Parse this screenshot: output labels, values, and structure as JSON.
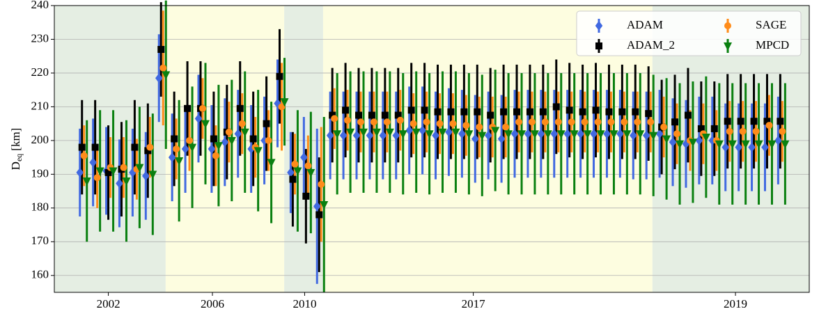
{
  "chart_data": {
    "type": "errorbar",
    "ylabel": "D",
    "ylabel_sub": "eq",
    "ylabel_unit": "[km]",
    "x": [
      0,
      1,
      2,
      3,
      4,
      5,
      6,
      7,
      8,
      9,
      10,
      11,
      12,
      13,
      14,
      15,
      16,
      17,
      18,
      19,
      20,
      21,
      22,
      23,
      24,
      25,
      26,
      27,
      28,
      29,
      30,
      31,
      32,
      33,
      34,
      35,
      36,
      37,
      38,
      39,
      40,
      41,
      42,
      43,
      44,
      45,
      46,
      47,
      48,
      49,
      50,
      51,
      52,
      53
    ],
    "xlim": [
      -2.1,
      55.2
    ],
    "xticks": [
      {
        "value": 2,
        "label": "2002"
      },
      {
        "value": 9.9,
        "label": "2006"
      },
      {
        "value": 16.9,
        "label": "2010"
      },
      {
        "value": 29.7,
        "label": "2017"
      },
      {
        "value": 49.6,
        "label": "2019"
      }
    ],
    "ylim": [
      155,
      240
    ],
    "yticks": [
      160,
      170,
      180,
      190,
      200,
      210,
      220,
      230,
      240
    ],
    "grid": true,
    "legend": "upper right",
    "shaded_regions": [
      {
        "x": [
          -2.1,
          6.35
        ],
        "color": "#e5eee3"
      },
      {
        "x": [
          6.35,
          15.35
        ],
        "color": "#fdfde0"
      },
      {
        "x": [
          15.35,
          18.3
        ],
        "color": "#e5eee3"
      },
      {
        "x": [
          18.3,
          43.3
        ],
        "color": "#fdfde0"
      },
      {
        "x": [
          43.3,
          55.2
        ],
        "color": "#e5eee3"
      }
    ],
    "series": [
      {
        "name": "ADAM",
        "color": "#4169e1",
        "marker": "diamond",
        "values": [
          190.5,
          193.5,
          191,
          187.3,
          190.5,
          189.5,
          218.5,
          195,
          197.5,
          206.5,
          197.5,
          199.5,
          202,
          197.5,
          200,
          211,
          190.5,
          195,
          180.5,
          201.5,
          201.5,
          201.5,
          201.5,
          201.5,
          201.5,
          203,
          203,
          201.5,
          202.5,
          202,
          200.5,
          201.5,
          200.5,
          202,
          202,
          202,
          202,
          202,
          202,
          202,
          202,
          202,
          201.5,
          201.5,
          202,
          199.5,
          199,
          200,
          200,
          198,
          198,
          198,
          198,
          200
        ],
        "errors": [
          13,
          13,
          13,
          13,
          13,
          13,
          13,
          13,
          13,
          13,
          13,
          13,
          13,
          13,
          13,
          13,
          12,
          12,
          23,
          13,
          13,
          13,
          13,
          13,
          13,
          13,
          13,
          13,
          13,
          13,
          13,
          13,
          13,
          13,
          13,
          13,
          13,
          13,
          13,
          13,
          13,
          13,
          13,
          13,
          13,
          13,
          13,
          13,
          13,
          13,
          13,
          13,
          13,
          13
        ]
      },
      {
        "name": "ADAM_2",
        "color": "#000000",
        "marker": "square",
        "values": [
          198,
          198,
          190.5,
          191.5,
          198,
          197,
          227,
          200.5,
          209.5,
          209.5,
          200.5,
          202.5,
          209.5,
          200.5,
          205,
          219,
          188.5,
          183.5,
          178,
          207.5,
          209,
          207.5,
          207.5,
          207.5,
          207.5,
          209,
          209,
          208.5,
          208.5,
          208.5,
          208.5,
          207.5,
          208.5,
          208.5,
          208.5,
          208.5,
          210,
          209,
          208.5,
          209,
          208.5,
          208.5,
          208.5,
          208,
          204,
          205.5,
          207.5,
          203.5,
          203.5,
          205.7,
          205.7,
          205.7,
          205.7,
          205.7
        ],
        "errors": [
          14,
          14,
          14,
          14,
          14,
          14,
          14,
          14,
          14,
          14,
          14,
          14,
          14,
          14,
          14,
          14,
          14,
          14,
          17,
          14,
          14,
          14,
          14,
          14,
          14,
          14,
          14,
          14,
          14,
          14,
          14,
          14,
          14,
          14,
          14,
          14,
          14,
          14,
          14,
          14,
          14,
          14,
          14,
          14,
          14,
          14,
          14,
          14,
          14,
          14,
          14,
          14,
          14,
          14
        ]
      },
      {
        "name": "SAGE",
        "color": "#ff8c1a",
        "marker": "circle",
        "values": [
          195.5,
          189,
          192,
          192,
          191.5,
          198,
          221.5,
          197.5,
          200,
          209.5,
          195.5,
          202.5,
          205,
          198,
          200,
          210,
          193,
          192.5,
          187,
          206.5,
          206,
          205.5,
          205.5,
          205.5,
          206,
          205,
          205.5,
          205,
          205,
          204.5,
          204,
          204,
          204,
          205.5,
          205.5,
          205.5,
          205.5,
          205.5,
          205.5,
          205.5,
          205.5,
          205.5,
          205.5,
          205.5,
          204,
          202,
          200,
          202,
          200,
          202.7,
          202.7,
          202.7,
          204.5,
          202.7
        ],
        "errors": [
          9,
          9,
          9,
          9,
          9,
          9,
          17,
          9,
          9,
          9,
          9,
          9,
          9,
          9,
          9,
          13,
          9,
          9,
          17,
          9,
          9,
          9,
          9,
          9,
          9,
          9,
          9,
          9,
          9,
          9,
          9,
          9,
          9,
          9,
          9,
          9,
          9,
          9,
          9,
          9,
          9,
          9,
          9,
          9,
          9,
          9,
          9,
          9,
          9,
          9,
          9,
          9,
          9,
          9
        ]
      },
      {
        "name": "MPCD",
        "color": "#0a8010",
        "marker": "triangle_down",
        "values": [
          188,
          191,
          191,
          188,
          192,
          190,
          219.5,
          194,
          198,
          205,
          198.5,
          200,
          202.5,
          197,
          193.5,
          211.5,
          191,
          190.5,
          181,
          202,
          202.5,
          202.5,
          202.5,
          202.5,
          202,
          202.5,
          202,
          202.5,
          202.5,
          202,
          201.5,
          203,
          202,
          202,
          202,
          202,
          202,
          202,
          202,
          202,
          202,
          202,
          202,
          201.5,
          200.5,
          199,
          199.5,
          201,
          199,
          199,
          199,
          199,
          199,
          199
        ],
        "errors": [
          18,
          18,
          18,
          18,
          18,
          18,
          22,
          18,
          18,
          18,
          18,
          18,
          18,
          18,
          18,
          13,
          18,
          18,
          26,
          18,
          18,
          18,
          18,
          18,
          18,
          18,
          18,
          18,
          18,
          18,
          18,
          18,
          18,
          18,
          18,
          18,
          18,
          18,
          18,
          18,
          18,
          18,
          18,
          18,
          18,
          18,
          18,
          18,
          18,
          18,
          18,
          18,
          18,
          18
        ]
      }
    ]
  }
}
